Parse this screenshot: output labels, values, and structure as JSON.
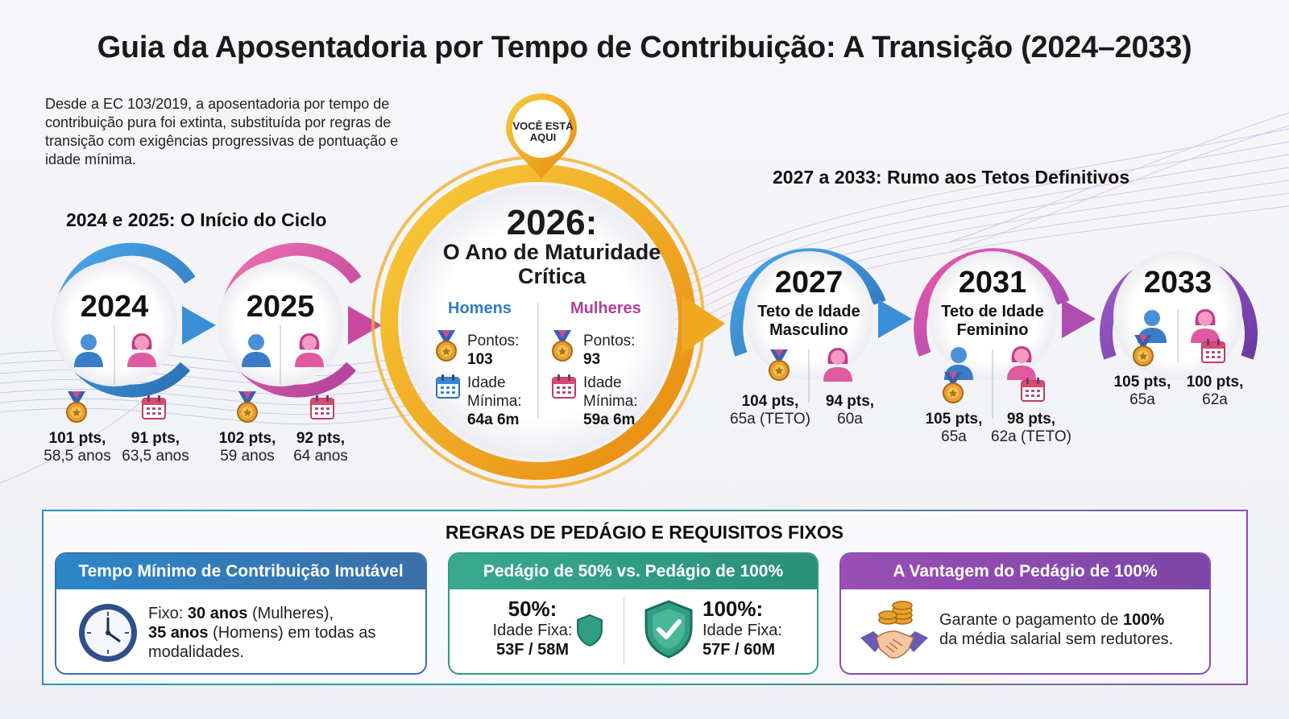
{
  "title": "Guia da Aposentadoria por Tempo de Contribuição: A Transição (2024–2033)",
  "intro": "Desde a EC 103/2019, a aposentadoria por tempo de contribuição pura foi extinta, substituída por regras de transição com exigências progressivas de pontuação e idade mínima.",
  "sections": {
    "early": "2024 e 2025: O Início do Ciclo",
    "late": "2027 a 2033: Rumo aos Tetos Definitivos"
  },
  "pin_label": "VOCÊ ESTÁ AQUI",
  "milestones": [
    {
      "year": "2024",
      "subtitle": "",
      "men_pts": "101 pts,",
      "men_age": "58,5 anos",
      "women_pts": "91 pts,",
      "women_age": "63,5 anos"
    },
    {
      "year": "2025",
      "subtitle": "",
      "men_pts": "102 pts,",
      "men_age": "59 anos",
      "women_pts": "92 pts,",
      "women_age": "64 anos"
    },
    {
      "year": "2027",
      "subtitle_1": "Teto de Idade",
      "subtitle_2": "Masculino",
      "men_pts": "104 pts,",
      "men_age": "65a (TETO)",
      "women_pts": "94 pts,",
      "women_age": "60a"
    },
    {
      "year": "2031",
      "subtitle_1": "Teto de Idade",
      "subtitle_2": "Feminino",
      "men_pts": "105 pts,",
      "men_age": "65a",
      "women_pts": "98 pts,",
      "women_age": "62a (TETO)"
    },
    {
      "year": "2033",
      "subtitle": "",
      "men_pts": "105 pts,",
      "men_age": "65a",
      "women_pts": "100 pts,",
      "women_age": "62a"
    }
  ],
  "center": {
    "year": "2026:",
    "subtitle": "O Ano de Maturidade Crítica",
    "men_head": "Homens",
    "women_head": "Mulheres",
    "points_label": "Pontos:",
    "age_label_1": "Idade",
    "age_label_2": "Mínima:",
    "men_points": "103",
    "women_points": "93",
    "men_age": "64a 6m",
    "women_age": "59a 6m"
  },
  "panel": {
    "title": "REGRAS DE PEDÁGIO E REQUISITOS FIXOS",
    "card1": {
      "head": "Tempo Mínimo de Contribuição Imutável",
      "t1": "Fixo: ",
      "b1": "30 anos",
      "t2": " (Mulheres),",
      "b2": "35 anos",
      "t3": " (Homens) em todas as",
      "t4": "modalidades."
    },
    "card2": {
      "head": "Pedágio de 50% vs. Pedágio de 100%",
      "left_pct": "50%:",
      "left_label": "Idade Fixa:",
      "left_val": "53F / 58M",
      "right_pct": "100%:",
      "right_label": "Idade Fixa:",
      "right_val": "57F / 60M"
    },
    "card3": {
      "head": "A Vantagem do Pedágio de 100%",
      "t1": "Garante o pagamento de ",
      "b1": "100%",
      "t2": "da média salarial sem redutores."
    }
  },
  "colors": {
    "blue": "#3b8fd6",
    "pink": "#e0549c",
    "gold": "#f0a820",
    "purple": "#8a4cae",
    "teal": "#2f9e84"
  },
  "icons": [
    "male-user-icon",
    "female-user-icon",
    "medal-icon",
    "calendar-icon",
    "clock-icon",
    "shield-icon",
    "shield-check-icon",
    "handshake-coins-icon",
    "location-pin-icon"
  ]
}
